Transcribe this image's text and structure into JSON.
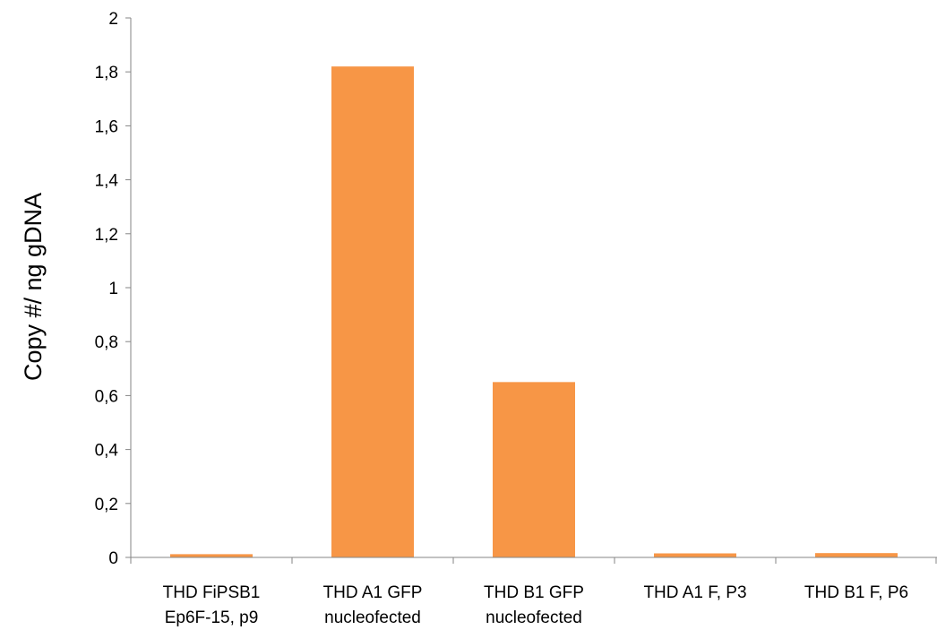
{
  "chart_data": {
    "type": "bar",
    "categories": [
      [
        "THD FiPSB1",
        "Ep6F-15, p9"
      ],
      [
        "THD A1 GFP",
        "nucleofected"
      ],
      [
        "THD B1 GFP",
        "nucleofected"
      ],
      [
        "THD A1 F, P3"
      ],
      [
        "THD B1 F, P6"
      ]
    ],
    "values": [
      0.012,
      1.82,
      0.65,
      0.015,
      0.016
    ],
    "title": "",
    "xlabel": "",
    "ylabel": "Copy #/ ng gDNA",
    "ylim": [
      0,
      2
    ],
    "yticks": [
      0,
      0.2,
      0.4,
      0.6,
      0.8,
      1,
      1.2,
      1.4,
      1.6,
      1.8,
      2
    ],
    "ytick_labels": [
      "0",
      "0,2",
      "0,4",
      "0,6",
      "0,8",
      "1",
      "1,2",
      "1,4",
      "1,6",
      "1,8",
      "2"
    ],
    "grid": false,
    "legend": "none",
    "bar_color": "#F79646"
  }
}
